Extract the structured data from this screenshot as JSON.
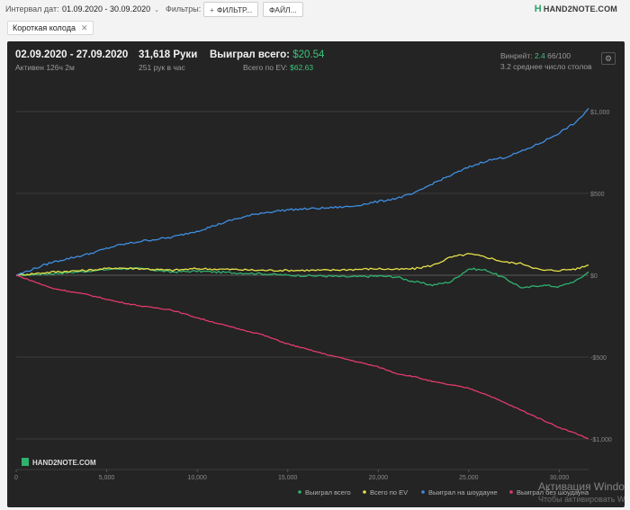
{
  "topbar": {
    "date_label": "Интервал дат:",
    "date_range": "01.09.2020 - 30.09.2020",
    "filters_label": "Фильтры:",
    "filter_button": "ФИЛЬТР...",
    "file_button": "ФАЙЛ...",
    "logo_text": "HAND2NOTE.COM"
  },
  "chip": {
    "label": "Короткая колода"
  },
  "stats": {
    "date_span": "02.09.2020 - 27.09.2020",
    "active": "Активен 126ч 2м",
    "hands": "31,618 Руки",
    "hands_per_hour": "251 рук в час",
    "won_label": "Выиграл всего:",
    "won_value": "$20.54",
    "ev_label": "Всего по EV:",
    "ev_value": "$62.63",
    "winrate_label": "Винрейт:",
    "winrate_value": "2.4",
    "winrate_rest": "66/100",
    "tables": "3.2 среднее число столов"
  },
  "watermark": {
    "line1": "Активация Windows",
    "line2": "Чтобы активировать Windows"
  },
  "colors": {
    "green": "#2fb26e",
    "yellow": "#e7e24a",
    "blue": "#3f8ee0",
    "pink": "#e23a6c"
  },
  "chart_data": {
    "type": "line",
    "logo": "HAND2NOTE.COM",
    "x_ticks": [
      "0",
      "5,000",
      "10,000",
      "15,000",
      "20,000",
      "25,000",
      "30,000"
    ],
    "y_ticks": [
      "$1,000",
      "$500",
      "$0",
      "-$500",
      "-$1,000"
    ],
    "x_range": [
      0,
      31618
    ],
    "y_range": [
      -1000,
      1000
    ],
    "grid": true,
    "legend_position": "bottom-right",
    "series": [
      {
        "name": "Выиграл всего",
        "color": "#2fb26e",
        "x": [
          0,
          2000,
          4000,
          5500,
          7000,
          8500,
          10000,
          12000,
          13500,
          15000,
          17000,
          18500,
          20000,
          21000,
          22000,
          23000,
          24000,
          25000,
          26000,
          27000,
          28000,
          29000,
          30000,
          31000,
          31618
        ],
        "y": [
          0,
          10,
          25,
          40,
          40,
          20,
          25,
          15,
          10,
          0,
          -5,
          -10,
          -5,
          -10,
          -40,
          -60,
          -40,
          40,
          30,
          -20,
          -80,
          -60,
          -70,
          -30,
          20.54
        ]
      },
      {
        "name": "Всего по EV",
        "color": "#e7e24a",
        "x": [
          0,
          2000,
          4000,
          5500,
          7000,
          8500,
          10000,
          12000,
          13500,
          15000,
          17000,
          18500,
          20000,
          21000,
          22000,
          23000,
          24000,
          25000,
          26000,
          27000,
          28000,
          29000,
          30000,
          31000,
          31618
        ],
        "y": [
          0,
          20,
          30,
          45,
          40,
          30,
          40,
          35,
          30,
          30,
          30,
          35,
          40,
          35,
          40,
          60,
          110,
          130,
          110,
          80,
          70,
          30,
          30,
          40,
          62.63
        ]
      },
      {
        "name": "Выиграл на шоудауне",
        "color": "#3f8ee0",
        "x": [
          0,
          2000,
          4000,
          5500,
          7000,
          8500,
          10000,
          12000,
          13500,
          15000,
          17000,
          18500,
          20000,
          21000,
          22000,
          23000,
          24000,
          25000,
          26000,
          27000,
          28000,
          29000,
          30000,
          31000,
          31618
        ],
        "y": [
          0,
          80,
          130,
          180,
          210,
          230,
          270,
          340,
          380,
          400,
          410,
          420,
          450,
          470,
          500,
          560,
          610,
          660,
          700,
          720,
          760,
          810,
          870,
          940,
          1020
        ]
      },
      {
        "name": "Выиграл без шоудауна",
        "color": "#e23a6c",
        "x": [
          0,
          2000,
          4000,
          5500,
          7000,
          8500,
          10000,
          12000,
          13500,
          15000,
          17000,
          18500,
          20000,
          21000,
          22000,
          23000,
          24000,
          25000,
          26000,
          27000,
          28000,
          29000,
          30000,
          31000,
          31618
        ],
        "y": [
          0,
          -80,
          -120,
          -160,
          -190,
          -210,
          -260,
          -320,
          -360,
          -420,
          -480,
          -520,
          -560,
          -600,
          -620,
          -650,
          -670,
          -690,
          -730,
          -780,
          -830,
          -880,
          -930,
          -970,
          -1000
        ]
      }
    ]
  }
}
